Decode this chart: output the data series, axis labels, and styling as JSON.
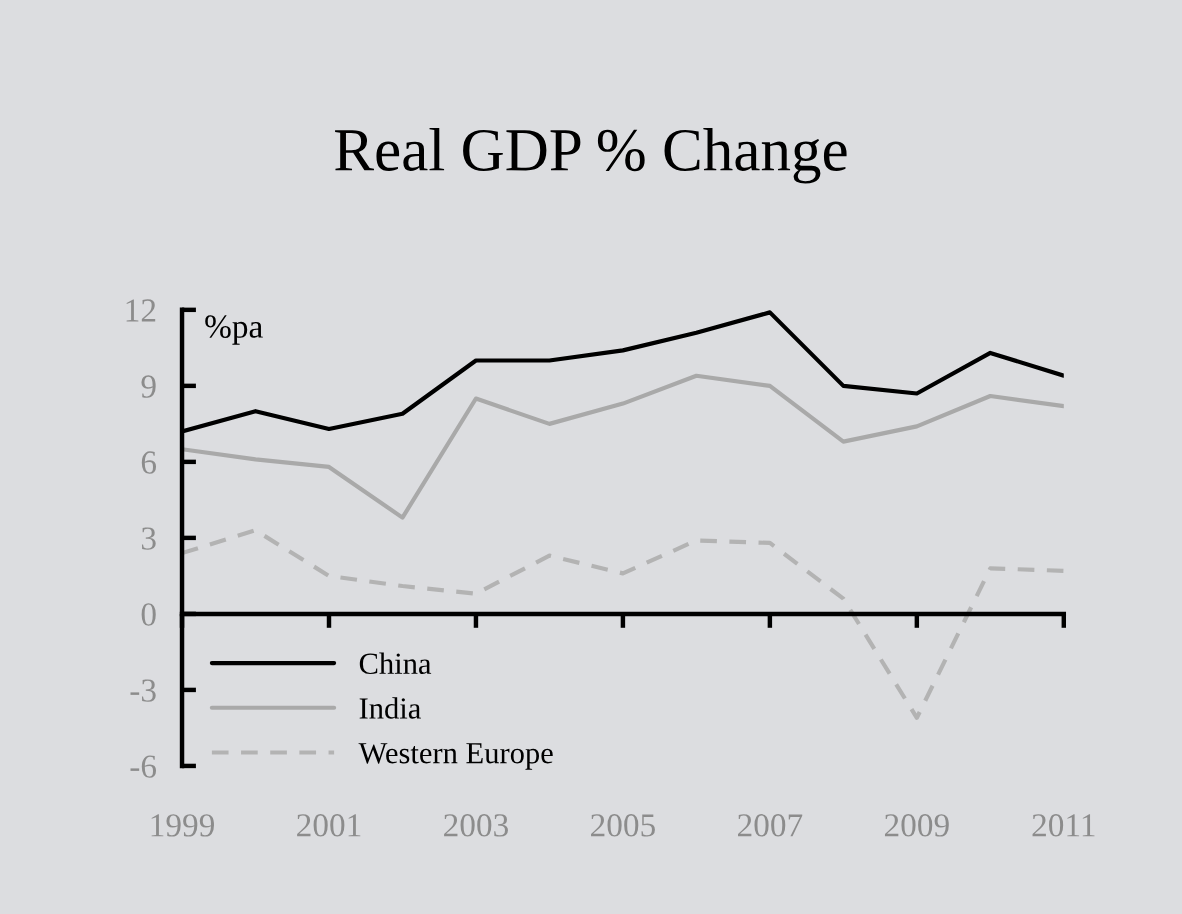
{
  "chart_data": {
    "type": "line",
    "title": "Real GDP % Change",
    "ylabel": "%pa",
    "x": [
      1999,
      2000,
      2001,
      2002,
      2003,
      2004,
      2005,
      2006,
      2007,
      2008,
      2009,
      2010,
      2011
    ],
    "xlim": [
      1999,
      2011
    ],
    "xticks": [
      1999,
      2001,
      2003,
      2005,
      2007,
      2009,
      2011
    ],
    "ylim": [
      -6,
      12
    ],
    "yticks": [
      -6,
      -3,
      0,
      3,
      6,
      9,
      12
    ],
    "legend": "bottom left",
    "series": [
      {
        "name": "China",
        "color": "#000000",
        "values": [
          7.2,
          8.0,
          7.3,
          7.9,
          10.0,
          10.0,
          10.4,
          11.1,
          11.9,
          9.0,
          8.7,
          10.3,
          9.4
        ]
      },
      {
        "name": "India",
        "color": "#a9a9a9",
        "values": [
          6.5,
          6.1,
          5.8,
          3.8,
          8.5,
          7.5,
          8.3,
          9.4,
          9.0,
          6.8,
          7.4,
          8.6,
          8.2
        ]
      },
      {
        "name": "Western Europe",
        "color": "#b3b3b3",
        "line_style": "dashed",
        "values": [
          2.4,
          3.3,
          1.5,
          1.1,
          0.8,
          2.3,
          1.6,
          2.9,
          2.8,
          0.6,
          -4.1,
          1.8,
          1.7
        ]
      }
    ]
  }
}
